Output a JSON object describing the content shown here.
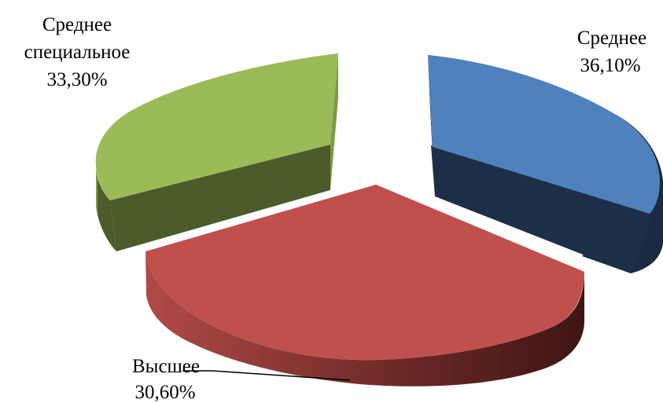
{
  "chart_data": {
    "type": "pie",
    "style": "3d-exploded",
    "legend": "none",
    "slices": [
      {
        "name": "Среднее",
        "value": 36.1,
        "value_label": "36,10%",
        "color": "#4f81bd",
        "side_color": "#1f324d"
      },
      {
        "name": "Высшее",
        "value": 30.6,
        "value_label": "30,60%",
        "color": "#c0504d",
        "side_color": "#6d2a28"
      },
      {
        "name": "Среднее специальное",
        "value": 33.3,
        "value_label": "33,30%",
        "color": "#9bbb59",
        "side_color": "#4f5f2c"
      }
    ]
  }
}
